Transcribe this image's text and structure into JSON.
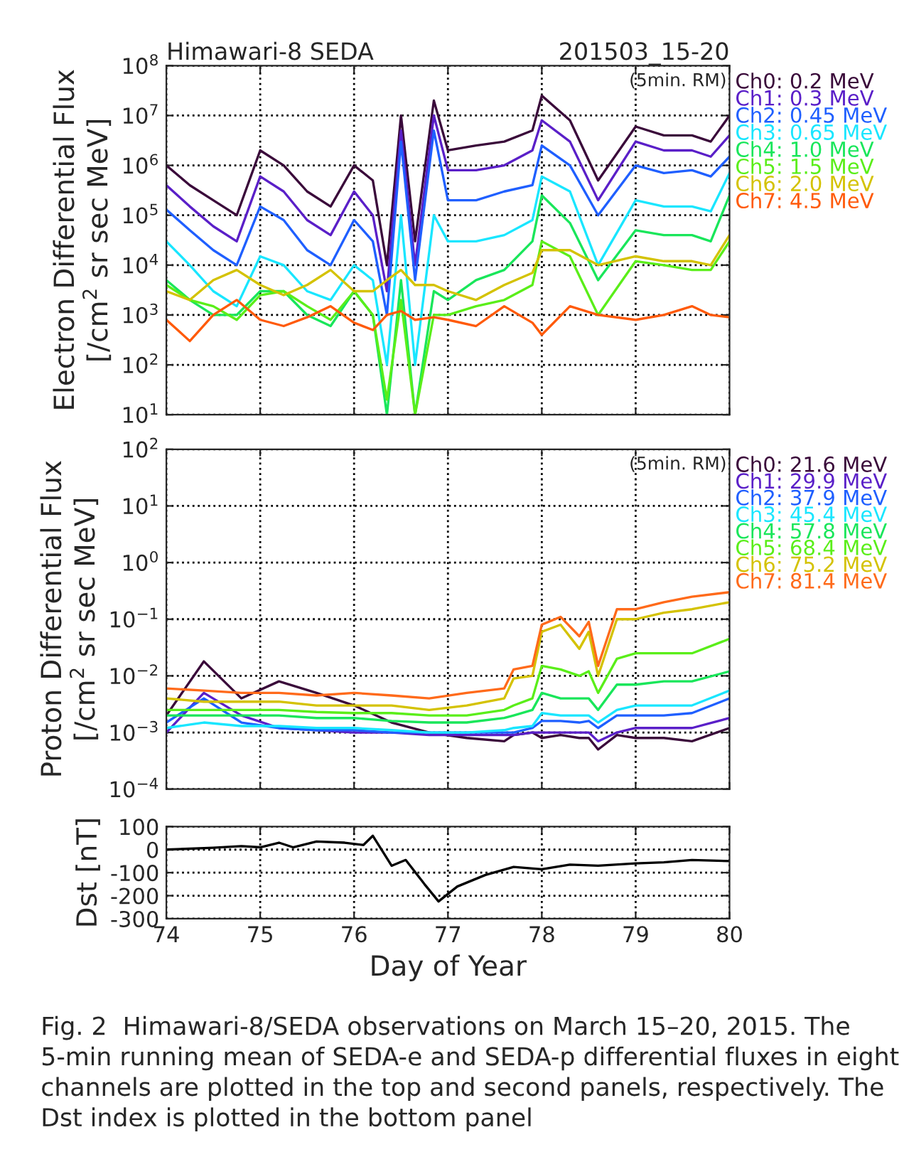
{
  "chart_data": [
    {
      "type": "line",
      "title": "Himawari-8 SEDA",
      "subtitle": "201503_15-20",
      "ylabel": "Electron Differential Flux\n[/cm$^{2}$ sr sec MeV]",
      "annotations": [
        "(5min. RM)"
      ],
      "log": true,
      "grid": true,
      "legend": "right",
      "tick_labels": "y",
      "xlim": [
        74,
        80
      ],
      "xticks": [
        74,
        75,
        76,
        77,
        78,
        79,
        80
      ],
      "ylim": [
        10,
        100000000.0
      ],
      "yticks": [
        {
          "value": 10,
          "label": "10$^{1}$"
        },
        {
          "value": 100,
          "label": "10$^{2}$"
        },
        {
          "value": 1000,
          "label": "10$^{3}$"
        },
        {
          "value": 10000,
          "label": "10$^{4}$"
        },
        {
          "value": 100000,
          "label": "10$^{5}$"
        },
        {
          "value": 1000000,
          "label": "10$^{6}$"
        },
        {
          "value": 10000000,
          "label": "10$^{7}$"
        },
        {
          "value": 100000000,
          "label": "10$^{8}$"
        }
      ],
      "x": [
        74,
        74.25,
        74.5,
        74.75,
        75,
        75.25,
        75.5,
        75.75,
        76,
        76.2,
        76.35,
        76.5,
        76.65,
        76.85,
        77,
        77.3,
        77.6,
        77.9,
        78,
        78.3,
        78.6,
        79,
        79.3,
        79.6,
        79.8,
        80
      ],
      "series": [
        {
          "name": "Ch0: 0.2 MeV",
          "color": "#3a0a3a",
          "values": [
            1000000.0,
            400000.0,
            200000.0,
            100000.0,
            2000000.0,
            1000000.0,
            300000.0,
            150000.0,
            1000000.0,
            500000.0,
            10000.0,
            10000000.0,
            30000.0,
            20000000.0,
            2000000.0,
            2500000.0,
            3000000.0,
            5000000.0,
            25000000.0,
            8000000.0,
            500000.0,
            6000000.0,
            4000000.0,
            4000000.0,
            3000000.0,
            10000000.0
          ]
        },
        {
          "name": "Ch1: 0.3 MeV",
          "color": "#5a1fc8",
          "values": [
            400000.0,
            150000.0,
            60000.0,
            30000.0,
            600000.0,
            300000.0,
            80000.0,
            40000.0,
            300000.0,
            100000.0,
            3000.0,
            5000000.0,
            10000.0,
            10000000.0,
            800000.0,
            800000.0,
            1000000.0,
            2000000.0,
            8000000.0,
            3000000.0,
            200000.0,
            3000000.0,
            2000000.0,
            2000000.0,
            1500000.0,
            4000000.0
          ]
        },
        {
          "name": "Ch2: 0.45 MeV",
          "color": "#1f5fff",
          "values": [
            130000.0,
            50000.0,
            20000.0,
            10000.0,
            150000.0,
            80000.0,
            20000.0,
            10000.0,
            80000.0,
            30000.0,
            1000.0,
            3000000.0,
            5000.0,
            5000000.0,
            200000.0,
            200000.0,
            300000.0,
            400000.0,
            2500000.0,
            1000000.0,
            100000.0,
            1000000.0,
            700000.0,
            800000.0,
            600000.0,
            1500000.0
          ]
        },
        {
          "name": "Ch3: 0.65 MeV",
          "color": "#19e6ff",
          "values": [
            30000.0,
            10000.0,
            3000.0,
            1500.0,
            15000.0,
            10000.0,
            3000.0,
            2000.0,
            10000.0,
            5000.0,
            100,
            100000.0,
            100,
            100000.0,
            30000.0,
            30000.0,
            40000.0,
            80000.0,
            600000.0,
            300000.0,
            10000.0,
            200000.0,
            150000.0,
            150000.0,
            120000.0,
            700000.0
          ]
        },
        {
          "name": "Ch4: 1.0 MeV",
          "color": "#19e65a",
          "values": [
            5000.0,
            2000.0,
            1000.0,
            1000.0,
            3000.0,
            3000.0,
            1000.0,
            600,
            3000.0,
            1000.0,
            10,
            5000.0,
            10,
            3000.0,
            2000.0,
            5000.0,
            8000.0,
            30000.0,
            250000.0,
            70000.0,
            5000.0,
            50000.0,
            40000.0,
            40000.0,
            30000.0,
            250000.0
          ]
        },
        {
          "name": "Ch5: 1.5 MeV",
          "color": "#5aee19",
          "values": [
            4000.0,
            2000.0,
            1500.0,
            800,
            2500.0,
            3000.0,
            1500.0,
            800,
            3000.0,
            1000.0,
            20,
            2000.0,
            10,
            1000.0,
            1000.0,
            1500.0,
            2000.0,
            4000.0,
            30000.0,
            15000.0,
            1000.0,
            12000.0,
            10000.0,
            8000.0,
            8000.0,
            30000.0
          ]
        },
        {
          "name": "Ch6: 2.0 MeV",
          "color": "#d4c200",
          "values": [
            3000.0,
            2000.0,
            5000.0,
            8000.0,
            4000.0,
            2500.0,
            4000.0,
            8000.0,
            3000.0,
            3000.0,
            5000.0,
            8000.0,
            4000.0,
            4000.0,
            3000.0,
            2000.0,
            4000.0,
            7000.0,
            20000.0,
            20000.0,
            10000.0,
            15000.0,
            12000.0,
            12000.0,
            10000.0,
            40000.0
          ]
        },
        {
          "name": "Ch7: 4.5 MeV",
          "color": "#ff5a0a",
          "values": [
            800,
            300,
            1000.0,
            2000.0,
            800,
            600,
            900,
            1500.0,
            700,
            500,
            1000.0,
            1200.0,
            800,
            900,
            800,
            600,
            1500.0,
            700,
            400,
            1500.0,
            1000.0,
            800,
            1000.0,
            1500.0,
            1000.0,
            900
          ]
        }
      ]
    },
    {
      "type": "line",
      "ylabel": "Proton Differential Flux\n[/cm$^{2}$ sr sec MeV]",
      "annotations": [
        "(5min. RM)"
      ],
      "log": true,
      "grid": true,
      "legend": "right",
      "tick_labels": "y",
      "xlim": [
        74,
        80
      ],
      "xticks": [
        74,
        75,
        76,
        77,
        78,
        79,
        80
      ],
      "ylim": [
        0.0001,
        100
      ],
      "yticks": [
        {
          "value": 0.0001,
          "label": "10$^{−4}$"
        },
        {
          "value": 0.001,
          "label": "10$^{−3}$"
        },
        {
          "value": 0.01,
          "label": "10$^{−2}$"
        },
        {
          "value": 0.1,
          "label": "10$^{−1}$"
        },
        {
          "value": 1,
          "label": "10$^{0}$"
        },
        {
          "value": 10,
          "label": "10$^{1}$"
        },
        {
          "value": 100,
          "label": "10$^{2}$"
        }
      ],
      "x": [
        74,
        74.4,
        74.8,
        75.2,
        75.6,
        76,
        76.4,
        76.8,
        77.2,
        77.6,
        77.7,
        77.9,
        78,
        78.2,
        78.4,
        78.5,
        78.6,
        78.8,
        79,
        79.3,
        79.6,
        80
      ],
      "series": [
        {
          "name": "Ch0: 21.6 MeV",
          "color": "#3a0a3a",
          "values": [
            0.002,
            0.018,
            0.004,
            0.008,
            0.005,
            0.003,
            0.0015,
            0.001,
            0.0008,
            0.0007,
            0.0009,
            0.001,
            0.0008,
            0.0009,
            0.0008,
            0.0008,
            0.0005,
            0.0009,
            0.0008,
            0.0008,
            0.0007,
            0.0012
          ]
        },
        {
          "name": "Ch1: 29.9 MeV",
          "color": "#5a1fc8",
          "values": [
            0.001,
            0.005,
            0.002,
            0.0012,
            0.0011,
            0.001,
            0.001,
            0.0009,
            0.0009,
            0.0009,
            0.0009,
            0.001,
            0.001,
            0.001,
            0.001,
            0.001,
            0.0007,
            0.001,
            0.0012,
            0.0012,
            0.0012,
            0.0018
          ]
        },
        {
          "name": "Ch2: 37.9 MeV",
          "color": "#1f5fff",
          "values": [
            0.0015,
            0.004,
            0.0015,
            0.0012,
            0.0011,
            0.0011,
            0.001,
            0.001,
            0.001,
            0.001,
            0.001,
            0.0012,
            0.0016,
            0.0016,
            0.0015,
            0.0016,
            0.0012,
            0.002,
            0.002,
            0.002,
            0.0022,
            0.004
          ]
        },
        {
          "name": "Ch3: 45.4 MeV",
          "color": "#19e6ff",
          "values": [
            0.0012,
            0.0015,
            0.0013,
            0.0013,
            0.0012,
            0.0012,
            0.0011,
            0.001,
            0.001,
            0.0011,
            0.0012,
            0.0013,
            0.0022,
            0.002,
            0.002,
            0.002,
            0.0015,
            0.0025,
            0.003,
            0.003,
            0.003,
            0.0055
          ]
        },
        {
          "name": "Ch4: 57.8 MeV",
          "color": "#19e65a",
          "values": [
            0.002,
            0.002,
            0.002,
            0.002,
            0.0018,
            0.0018,
            0.0016,
            0.0015,
            0.0015,
            0.0018,
            0.002,
            0.0025,
            0.005,
            0.004,
            0.004,
            0.004,
            0.0025,
            0.007,
            0.007,
            0.008,
            0.008,
            0.012
          ]
        },
        {
          "name": "Ch5: 68.4 MeV",
          "color": "#5aee19",
          "values": [
            0.0025,
            0.0025,
            0.0025,
            0.0025,
            0.0023,
            0.0022,
            0.0022,
            0.002,
            0.002,
            0.0025,
            0.003,
            0.004,
            0.015,
            0.013,
            0.01,
            0.012,
            0.005,
            0.02,
            0.025,
            0.025,
            0.025,
            0.045
          ]
        },
        {
          "name": "Ch6: 75.2 MeV",
          "color": "#d4c200",
          "values": [
            0.004,
            0.0035,
            0.0035,
            0.0035,
            0.003,
            0.003,
            0.003,
            0.0025,
            0.003,
            0.004,
            0.009,
            0.01,
            0.06,
            0.08,
            0.03,
            0.06,
            0.01,
            0.1,
            0.1,
            0.13,
            0.15,
            0.2
          ]
        },
        {
          "name": "Ch7: 81.4 MeV",
          "color": "#ff6a1a",
          "values": [
            0.006,
            0.0055,
            0.005,
            0.005,
            0.0045,
            0.005,
            0.0045,
            0.004,
            0.005,
            0.006,
            0.013,
            0.015,
            0.08,
            0.11,
            0.05,
            0.09,
            0.015,
            0.15,
            0.15,
            0.2,
            0.25,
            0.3
          ]
        }
      ]
    },
    {
      "type": "line",
      "xlabel": "Day of Year",
      "ylabel": "Dst [nT]",
      "grid": true,
      "annotations": [
        "Fig. 2  Himawari-8/SEDA observations on March 15–20, 2015. The 5-min running mean of SEDA-e and SEDA-p differential fluxes in eight channels are plotted in the top and second panels, respectively. The Dst index is plotted in the bottom panel"
      ],
      "xlim": [
        74,
        80
      ],
      "xticks": [
        74,
        75,
        76,
        77,
        78,
        79,
        80
      ],
      "ylim": [
        -300,
        100
      ],
      "yticks": [
        -300,
        -200,
        -100,
        0,
        100
      ],
      "x": [
        74,
        74.5,
        74.8,
        75,
        75.2,
        75.35,
        75.6,
        75.9,
        76.1,
        76.2,
        76.4,
        76.55,
        76.75,
        76.9,
        77.1,
        77.4,
        77.7,
        78,
        78.3,
        78.6,
        79,
        79.3,
        79.6,
        80
      ],
      "series": [
        {
          "color": "#000000",
          "values": [
            0,
            8,
            15,
            10,
            30,
            10,
            35,
            30,
            20,
            60,
            -70,
            -45,
            -150,
            -225,
            -160,
            -110,
            -75,
            -85,
            -65,
            -70,
            -60,
            -55,
            -45,
            -50
          ]
        }
      ]
    }
  ]
}
